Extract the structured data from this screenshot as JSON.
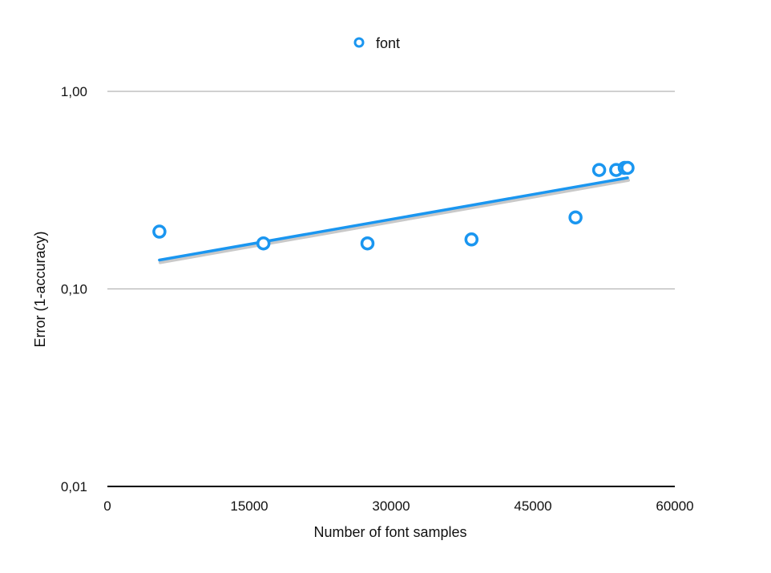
{
  "chart_data": {
    "type": "scatter",
    "xlabel": "Number of font samples",
    "ylabel": "Error (1-accuracy)",
    "xlim": [
      0,
      60000
    ],
    "ylim": [
      0.01,
      1.0
    ],
    "y_scale": "log",
    "x_ticks": [
      0,
      15000,
      30000,
      45000,
      60000
    ],
    "x_tick_labels": [
      "0",
      "15000",
      "30000",
      "45000",
      "60000"
    ],
    "y_ticks": [
      0.01,
      0.1,
      1.0
    ],
    "y_tick_labels": [
      "0,01",
      "0,10",
      "1,00"
    ],
    "grid": true,
    "legend_position": "top-center",
    "series": [
      {
        "name": "font",
        "color": "#1a96f0",
        "marker": "hollow-circle",
        "x": [
          5500,
          16500,
          27500,
          38500,
          49500,
          52000,
          53800,
          54700,
          55000
        ],
        "y": [
          0.195,
          0.17,
          0.17,
          0.178,
          0.23,
          0.4,
          0.4,
          0.41,
          0.41
        ]
      }
    ],
    "trendline": {
      "type": "exponential",
      "color": "#1a96f0",
      "x": [
        5500,
        55000
      ],
      "y": [
        0.14,
        0.365
      ]
    }
  }
}
